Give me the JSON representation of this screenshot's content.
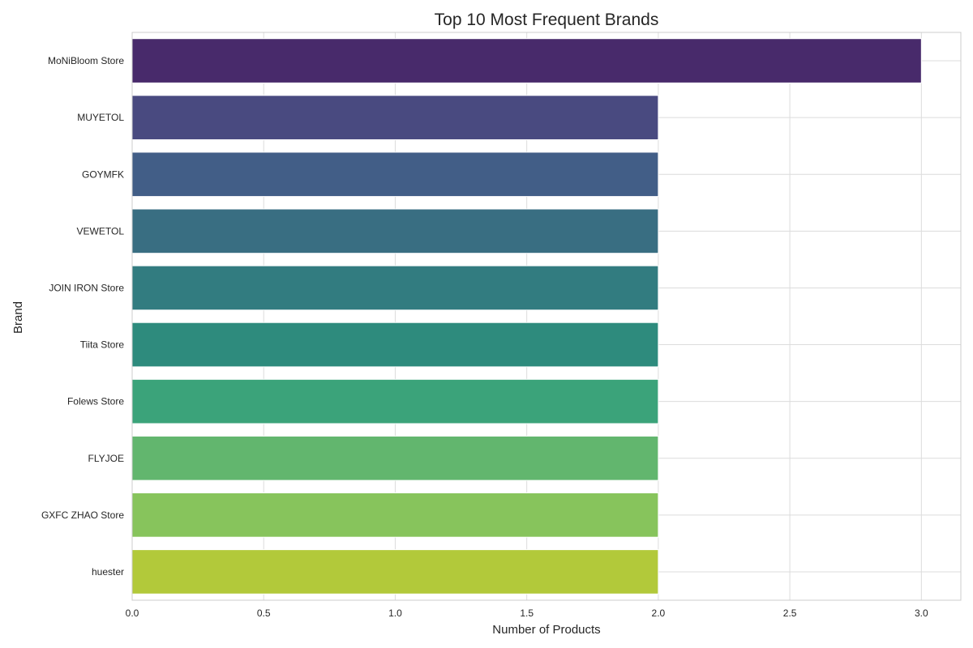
{
  "chart_data": {
    "type": "bar",
    "orientation": "horizontal",
    "title": "Top 10 Most Frequent Brands",
    "xlabel": "Number of Products",
    "ylabel": "Brand",
    "categories": [
      "MoNiBloom Store",
      "MUYETOL",
      "GOYMFK",
      "VEWETOL",
      "JOIN IRON Store",
      "Tiita Store",
      "Folews Store",
      "FLYJOE",
      "GXFC ZHAO Store",
      "huester"
    ],
    "values": [
      3,
      2,
      2,
      2,
      2,
      2,
      2,
      2,
      2,
      2
    ],
    "colors": [
      "#482A6B",
      "#494A80",
      "#425E87",
      "#396E82",
      "#327C80",
      "#2E8B7D",
      "#3BA37A",
      "#62B66E",
      "#87C45C",
      "#B2C93A"
    ],
    "xlim": [
      0,
      3.15
    ],
    "xticks": [
      "0.0",
      "0.5",
      "1.0",
      "1.5",
      "2.0",
      "2.5",
      "3.0"
    ],
    "grid": true,
    "legend": "none"
  }
}
